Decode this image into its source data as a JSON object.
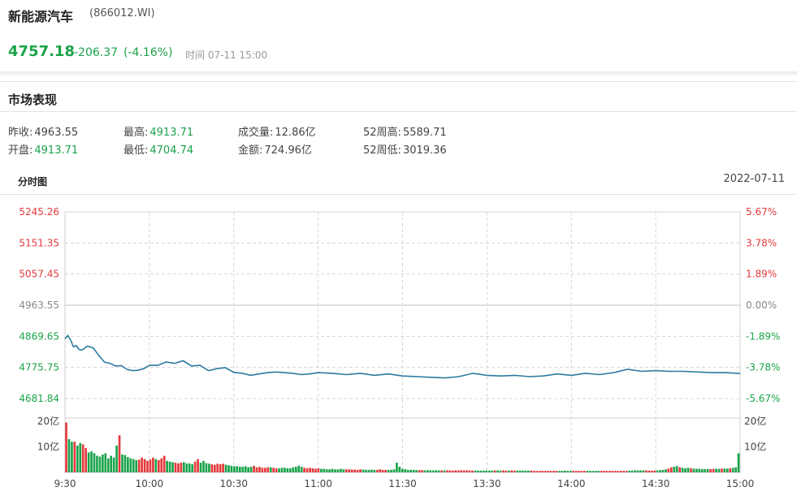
{
  "header": {
    "name": "新能源汽车",
    "code": "(866012.WI)",
    "price": "4757.18",
    "change": "-206.37",
    "change_pct": "(-4.16%)",
    "time_label": "时间",
    "time_value": "07-11 15:00"
  },
  "market": {
    "title": "市场表现",
    "stats": [
      {
        "label": "昨收:",
        "value": "4963.55",
        "tone": "neutral"
      },
      {
        "label": "最高:",
        "value": "4913.71",
        "tone": "down"
      },
      {
        "label": "成交量:",
        "value": "12.86亿",
        "tone": "neutral"
      },
      {
        "label": "52周高:",
        "value": "5589.71",
        "tone": "neutral"
      },
      {
        "label": "开盘:",
        "value": "4913.71",
        "tone": "down"
      },
      {
        "label": "最低:",
        "value": "4704.74",
        "tone": "down"
      },
      {
        "label": "金额:",
        "value": "724.96亿",
        "tone": "neutral"
      },
      {
        "label": "52周低:",
        "value": "3019.36",
        "tone": "neutral"
      }
    ]
  },
  "chart": {
    "title": "分时图",
    "date": "2022-07-11"
  },
  "colors": {
    "up": "#e4393c",
    "down": "#1aa34a",
    "line": "#2b7aa0",
    "neutral": "#888888"
  },
  "chart_data": {
    "type": "line",
    "prev_close": 4963.55,
    "y_ticks": [
      "5245.26",
      "5151.35",
      "5057.45",
      "4963.55",
      "4869.65",
      "4775.75",
      "4681.84"
    ],
    "y_ticks_right": [
      "5.67%",
      "3.78%",
      "1.89%",
      "0.00%",
      "-1.89%",
      "-3.78%",
      "-5.67%"
    ],
    "ylim": [
      4681.84,
      5245.26
    ],
    "x_ticks": [
      "9:30",
      "10:00",
      "10:30",
      "11:00",
      "11:30",
      "13:30",
      "14:00",
      "14:30",
      "15:00"
    ],
    "volume_ticks": [
      "20亿",
      "10亿"
    ],
    "volume_ticks_right": [
      "20亿",
      "10亿"
    ],
    "volume_ylim": [
      0,
      20
    ],
    "series": [
      {
        "x": [
          0,
          1,
          2,
          3,
          4,
          5,
          6,
          8,
          10,
          12,
          14,
          16,
          18,
          20,
          22,
          24,
          26,
          28,
          30,
          33,
          36,
          39,
          42,
          45,
          48,
          51,
          54,
          57,
          60,
          63,
          66,
          69,
          72,
          75,
          78,
          81,
          84,
          87,
          90,
          95,
          100,
          105,
          110,
          115,
          120,
          125,
          130,
          135,
          140,
          145,
          150,
          155,
          160,
          165,
          170,
          175,
          180,
          185,
          190,
          195,
          200,
          205,
          210,
          215,
          220,
          225,
          230,
          235,
          240
        ],
        "values": [
          4862,
          4872,
          4858,
          4838,
          4842,
          4830,
          4828,
          4840,
          4835,
          4812,
          4792,
          4788,
          4780,
          4781,
          4770,
          4766,
          4767,
          4772,
          4782,
          4782,
          4792,
          4788,
          4796,
          4780,
          4782,
          4766,
          4772,
          4775,
          4761,
          4758,
          4752,
          4756,
          4760,
          4762,
          4760,
          4758,
          4754,
          4756,
          4760,
          4758,
          4754,
          4758,
          4752,
          4756,
          4750,
          4748,
          4746,
          4744,
          4748,
          4758,
          4752,
          4750,
          4752,
          4748,
          4750,
          4756,
          4752,
          4758,
          4754,
          4760,
          4770,
          4764,
          4766,
          4764,
          4764,
          4762,
          4760,
          4760,
          4757.18
        ]
      }
    ],
    "volume": {
      "values": [
        19.5,
        13,
        12,
        12,
        10.5,
        11.5,
        11,
        9.5,
        7.8,
        8.2,
        7.5,
        6.5,
        6.2,
        7,
        7.5,
        5.5,
        6.5,
        5.8,
        10.5,
        14.5,
        7,
        6.8,
        6,
        5.5,
        5.2,
        4.8,
        5,
        5.8,
        5.2,
        4.5,
        5,
        5.8,
        5.2,
        4.8,
        5.5,
        6.5,
        4.5,
        4.2,
        4,
        3.8,
        3.5,
        3.8,
        4,
        3.5,
        3.5,
        3.2,
        4.2,
        5.2,
        3.8,
        4.5,
        3.6,
        3.4,
        3.2,
        3,
        3.4,
        3.2,
        3.4,
        3,
        2.8,
        2.6,
        2.4,
        2.4,
        2.2,
        2.2,
        2.4,
        2,
        2.2,
        2.6,
        2,
        2.2,
        1.8,
        1.8,
        2,
        2,
        1.8,
        1.6,
        1.6,
        1.8,
        1.8,
        1.6,
        1.6,
        2,
        2.2,
        2.6,
        2.2,
        1.8,
        1.6,
        1.8,
        1.6,
        1.4,
        1.6,
        1.4,
        1.4,
        1.2,
        1.2,
        1.4,
        1.2,
        1.2,
        1.4,
        1.2,
        1.2,
        1.2,
        1.1,
        1.1,
        1,
        1.2,
        1.1,
        1,
        1,
        1.1,
        1,
        1,
        1.2,
        1,
        1,
        1,
        1,
        1.2,
        3.8,
        2.2,
        1.4,
        1.2,
        1,
        1,
        1,
        0.9,
        0.9,
        0.9,
        0.8,
        0.9,
        0.8,
        0.8,
        0.8,
        0.8,
        0.8,
        0.8,
        0.8,
        0.8,
        0.7,
        0.8,
        0.8,
        0.8,
        0.8,
        0.8,
        0.8,
        0.7,
        0.7,
        0.7,
        0.7,
        0.7,
        0.7,
        0.7,
        0.7,
        0.8,
        0.8,
        0.7,
        0.8,
        0.7,
        0.7,
        0.8,
        0.7,
        0.7,
        0.7,
        0.7,
        0.7,
        0.7,
        0.7,
        0.6,
        0.6,
        0.6,
        0.6,
        0.6,
        0.6,
        0.6,
        0.6,
        0.6,
        0.6,
        0.6,
        0.7,
        0.6,
        0.6,
        0.6,
        0.6,
        0.6,
        0.6,
        0.6,
        0.6,
        0.6,
        0.6,
        0.6,
        0.6,
        0.6,
        0.6,
        0.6,
        0.6,
        0.6,
        0.6,
        0.6,
        0.6,
        0.6,
        0.6,
        0.7,
        0.7,
        0.8,
        0.8,
        0.8,
        0.8,
        0.8,
        0.7,
        0.7,
        0.7,
        0.8,
        0.9,
        1,
        1.2,
        1.5,
        2,
        2.2,
        2.5,
        2,
        1.8,
        1.6,
        1.8,
        1.6,
        1.5,
        1.4,
        1.4,
        1.3,
        1.3,
        1.3,
        1.3,
        1.4,
        1.4,
        1.4,
        1.5,
        1.5,
        1.5,
        1.6,
        1.8,
        2,
        7.5
      ],
      "colors": "red when minute price rises, green when it falls"
    }
  }
}
